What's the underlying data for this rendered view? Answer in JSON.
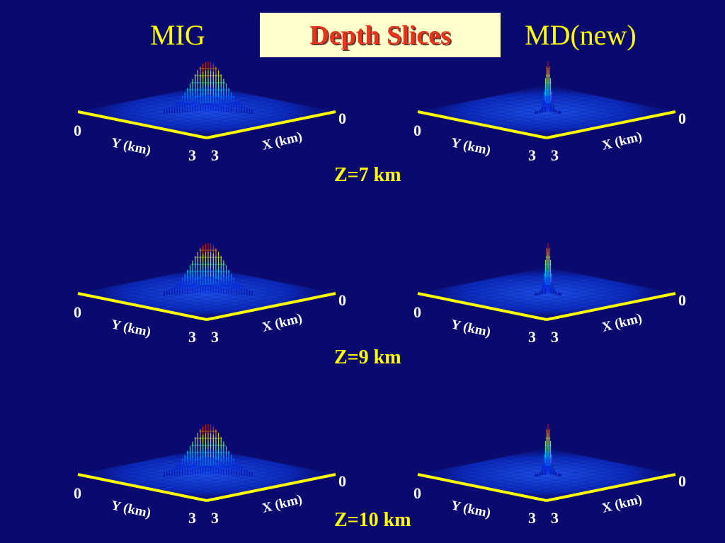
{
  "title": "Depth Slices",
  "left_column_label": "MIG",
  "right_column_label": "MD(new)",
  "depth_labels": [
    "Z=7 km",
    "Z=9 km",
    "Z=10 km"
  ],
  "axis": {
    "y_label": "Y (km)",
    "x_label": "X (km)",
    "y_start": "0",
    "y_end": "3",
    "x_start": "0",
    "x_end": "3"
  },
  "colors": {
    "background": "#0a0a6e",
    "header_text": "#ffff00",
    "title_text": "#e8331c",
    "title_box": "#ffffcc",
    "axis_line": "#ffff00"
  },
  "panels": [
    {
      "method": "MIG",
      "depth": "Z=7 km",
      "peak": "broad"
    },
    {
      "method": "MD(new)",
      "depth": "Z=7 km",
      "peak": "narrow"
    },
    {
      "method": "MIG",
      "depth": "Z=9 km",
      "peak": "broad"
    },
    {
      "method": "MD(new)",
      "depth": "Z=9 km",
      "peak": "narrow"
    },
    {
      "method": "MIG",
      "depth": "Z=10 km",
      "peak": "broad"
    },
    {
      "method": "MD(new)",
      "depth": "Z=10 km",
      "peak": "narrow"
    }
  ]
}
